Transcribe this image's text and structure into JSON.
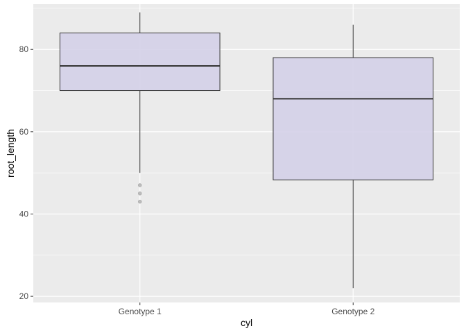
{
  "chart_data": {
    "type": "boxplot",
    "xlabel": "cyl",
    "ylabel": "root_length",
    "categories": [
      "Genotype 1",
      "Genotype 2"
    ],
    "ylim": [
      18.5,
      91
    ],
    "y_ticks": [
      20,
      40,
      60,
      80
    ],
    "y_minor_ticks": [
      30,
      50,
      70,
      90
    ],
    "grid": true,
    "boxes": [
      {
        "category": "Genotype 1",
        "whisker_low": 50,
        "q1": 70,
        "median": 76,
        "q3": 84,
        "whisker_high": 89,
        "outliers": [
          47,
          45,
          43
        ]
      },
      {
        "category": "Genotype 2",
        "whisker_low": 22,
        "q1": 48.3,
        "median": 68,
        "q3": 78,
        "whisker_high": 86,
        "outliers": []
      }
    ],
    "colors": {
      "panel": "#ebebeb",
      "grid": "#ffffff",
      "box_fill": "#d4d0e8",
      "box_stroke": "#333333",
      "outlier": "#bdbdbd"
    }
  }
}
